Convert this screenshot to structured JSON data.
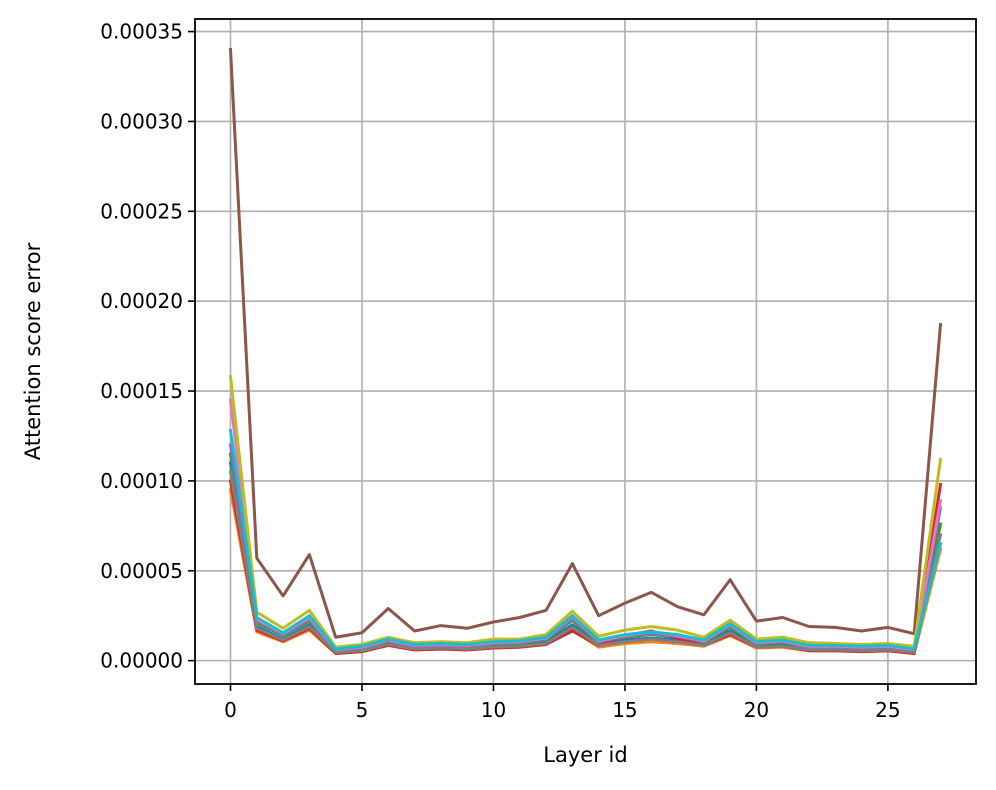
{
  "chart_data": {
    "type": "line",
    "xlabel": "Layer id",
    "ylabel": "Attention score error",
    "xlim": [
      -1.35,
      28.35
    ],
    "ylim": [
      -1.3e-05,
      0.000357
    ],
    "xticks": [
      0,
      5,
      10,
      15,
      20,
      25
    ],
    "xtick_labels": [
      "0",
      "5",
      "10",
      "15",
      "20",
      "25"
    ],
    "yticks": [
      0,
      5e-05,
      0.0001,
      0.00015,
      0.0002,
      0.00025,
      0.0003,
      0.00035
    ],
    "ytick_labels": [
      "0.00000",
      "0.00005",
      "0.00010",
      "0.00015",
      "0.00020",
      "0.00025",
      "0.00030",
      "0.00035"
    ],
    "grid": true,
    "x": [
      0,
      1,
      2,
      3,
      4,
      5,
      6,
      7,
      8,
      9,
      10,
      11,
      12,
      13,
      14,
      15,
      16,
      17,
      18,
      19,
      20,
      21,
      22,
      23,
      24,
      25,
      26,
      27
    ],
    "series": [
      {
        "color": "#1f77b4",
        "values": [
          0.00011,
          1.9e-05,
          1.2e-05,
          2e-05,
          4.5e-06,
          5.5e-06,
          9.5e-06,
          6.5e-06,
          7e-06,
          6.5e-06,
          8e-06,
          8.5e-06,
          1e-05,
          2e-05,
          9e-06,
          1.15e-05,
          1.25e-05,
          1.15e-05,
          9e-06,
          1.65e-05,
          8e-06,
          8.5e-06,
          6e-06,
          6e-06,
          5.5e-06,
          6e-06,
          4.5e-06,
          6.5e-05
        ]
      },
      {
        "color": "#ff7f0e",
        "values": [
          9.5e-05,
          1.6e-05,
          1.05e-05,
          1.7e-05,
          4e-06,
          5e-06,
          8.5e-06,
          6e-06,
          6.5e-06,
          6e-06,
          7e-06,
          7.5e-06,
          9e-06,
          1.7e-05,
          7.5e-06,
          9.5e-06,
          1.05e-05,
          9.5e-06,
          8e-06,
          1.4e-05,
          7e-06,
          7.5e-06,
          5.5e-06,
          5.5e-06,
          5e-06,
          5.5e-06,
          4e-06,
          6.2e-05
        ]
      },
      {
        "color": "#2ca02c",
        "values": [
          0.000115,
          2.1e-05,
          1.4e-05,
          2.2e-05,
          5.5e-06,
          6.5e-06,
          1.05e-05,
          7.5e-06,
          8e-06,
          7.5e-06,
          9e-06,
          9.5e-06,
          1.15e-05,
          2.25e-05,
          1e-05,
          1.3e-05,
          1.45e-05,
          1.3e-05,
          1e-05,
          1.85e-05,
          9e-06,
          1e-05,
          7e-06,
          7e-06,
          6.5e-06,
          7e-06,
          5e-06,
          7.6e-05
        ]
      },
      {
        "color": "#d62728",
        "values": [
          0.0001,
          1.7e-05,
          1.1e-05,
          1.8e-05,
          4e-06,
          5e-06,
          8.5e-06,
          6e-06,
          6.5e-06,
          6e-06,
          7e-06,
          7.5e-06,
          9e-06,
          1.65e-05,
          8.5e-06,
          1.4e-05,
          1.65e-05,
          1.25e-05,
          8.5e-06,
          1.45e-05,
          7.5e-06,
          8e-06,
          5.5e-06,
          5.5e-06,
          5e-06,
          5.5e-06,
          4e-06,
          9.8e-05
        ]
      },
      {
        "color": "#9467bd",
        "values": [
          0.00012,
          2.2e-05,
          1.45e-05,
          2.3e-05,
          5.5e-06,
          7e-06,
          1.1e-05,
          8e-06,
          8.5e-06,
          8e-06,
          9.5e-06,
          1e-05,
          1.2e-05,
          2.35e-05,
          1.05e-05,
          1.35e-05,
          1.5e-05,
          1.35e-05,
          1.05e-05,
          1.95e-05,
          9.5e-06,
          1.05e-05,
          7.5e-06,
          7.5e-06,
          7e-06,
          7.5e-06,
          5.5e-06,
          8.5e-05
        ]
      },
      {
        "color": "#8c564b",
        "values": [
          0.00034,
          5.7e-05,
          3.6e-05,
          5.9e-05,
          1.3e-05,
          1.55e-05,
          2.9e-05,
          1.65e-05,
          1.95e-05,
          1.8e-05,
          2.15e-05,
          2.4e-05,
          2.8e-05,
          5.4e-05,
          2.5e-05,
          3.2e-05,
          3.8e-05,
          3e-05,
          2.55e-05,
          4.5e-05,
          2.2e-05,
          2.4e-05,
          1.9e-05,
          1.85e-05,
          1.65e-05,
          1.85e-05,
          1.5e-05,
          0.000187
        ]
      },
      {
        "color": "#e377c2",
        "values": [
          0.000145,
          2.3e-05,
          1.5e-05,
          2.4e-05,
          6e-06,
          7.5e-06,
          1.15e-05,
          8.5e-06,
          9e-06,
          8.5e-06,
          1e-05,
          1.05e-05,
          1.25e-05,
          2.45e-05,
          1.1e-05,
          1.4e-05,
          1.6e-05,
          1.4e-05,
          1.1e-05,
          2e-05,
          1e-05,
          1.1e-05,
          8e-06,
          8e-06,
          7.5e-06,
          8e-06,
          6e-06,
          8.9e-05
        ]
      },
      {
        "color": "#7f7f7f",
        "values": [
          0.000105,
          1.8e-05,
          1.15e-05,
          1.9e-05,
          4.5e-06,
          5.5e-06,
          9e-06,
          6.5e-06,
          7e-06,
          6.5e-06,
          7.5e-06,
          8e-06,
          9.5e-06,
          1.85e-05,
          8.5e-06,
          1.05e-05,
          1.2e-05,
          1.05e-05,
          8.5e-06,
          1.55e-05,
          7.5e-06,
          8e-06,
          6e-06,
          6e-06,
          5.5e-06,
          6e-06,
          4.5e-06,
          7e-05
        ]
      },
      {
        "color": "#bcbd22",
        "values": [
          0.000158,
          2.7e-05,
          1.8e-05,
          2.8e-05,
          7.5e-06,
          9e-06,
          1.3e-05,
          1e-05,
          1.05e-05,
          1e-05,
          1.2e-05,
          1.2e-05,
          1.45e-05,
          2.75e-05,
          1.35e-05,
          1.7e-05,
          1.9e-05,
          1.7e-05,
          1.3e-05,
          2.25e-05,
          1.2e-05,
          1.3e-05,
          1e-05,
          9.5e-06,
          9e-06,
          9.5e-06,
          8e-06,
          0.000112
        ]
      },
      {
        "color": "#17becf",
        "values": [
          0.000128,
          2.4e-05,
          1.55e-05,
          2.5e-05,
          6.5e-06,
          8e-06,
          1.2e-05,
          9e-06,
          9.5e-06,
          9e-06,
          1.05e-05,
          1.1e-05,
          1.3e-05,
          2.5e-05,
          1.15e-05,
          1.45e-05,
          1.6e-05,
          1.45e-05,
          1.15e-05,
          2.05e-05,
          1.05e-05,
          1.15e-05,
          8.5e-06,
          8.5e-06,
          8e-06,
          8.5e-06,
          6.5e-06,
          6.5e-05
        ]
      }
    ]
  }
}
